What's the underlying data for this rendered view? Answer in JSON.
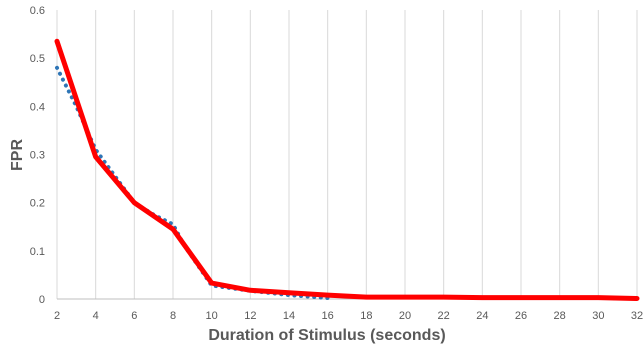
{
  "chart_data": {
    "type": "line",
    "xlabel": "Duration of Stimulus (seconds)",
    "ylabel": "FPR",
    "xlim": [
      2,
      32
    ],
    "ylim": [
      0,
      0.6
    ],
    "x_ticks": [
      2,
      4,
      6,
      8,
      10,
      12,
      14,
      16,
      18,
      20,
      22,
      24,
      26,
      28,
      30,
      32
    ],
    "y_ticks": [
      0,
      0.1,
      0.2,
      0.3,
      0.4,
      0.5,
      0.6
    ],
    "grid": "vertical",
    "legend": "none",
    "series": [
      {
        "style": "dotted",
        "color": "#2E75B6",
        "x": [
          2,
          3,
          4,
          6,
          7,
          8,
          8.6,
          10,
          12,
          14,
          16
        ],
        "y": [
          0.48,
          0.4,
          0.31,
          0.2,
          0.175,
          0.155,
          0.11,
          0.028,
          0.017,
          0.008,
          0.002
        ]
      },
      {
        "style": "solid",
        "color": "#FF0000",
        "x": [
          2,
          4,
          6,
          8,
          10,
          12,
          14,
          16,
          18,
          20,
          22,
          24,
          26,
          28,
          30,
          32
        ],
        "y": [
          0.535,
          0.295,
          0.2,
          0.145,
          0.033,
          0.018,
          0.013,
          0.008,
          0.004,
          0.004,
          0.004,
          0.003,
          0.003,
          0.003,
          0.003,
          0.001
        ]
      }
    ]
  }
}
